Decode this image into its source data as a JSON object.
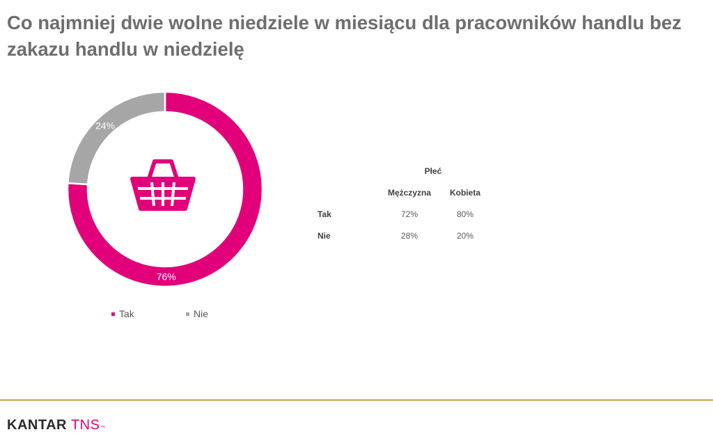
{
  "title": "Co najmniej dwie wolne niedziele w miesiącu dla pracowników handlu bez zakazu handlu w niedzielę",
  "chart_data": {
    "type": "pie",
    "variant": "donut",
    "categories": [
      "Tak",
      "Nie"
    ],
    "values": [
      76,
      24
    ],
    "labels": [
      "76%",
      "24%"
    ],
    "colors": [
      "#e2007a",
      "#a6a6a6"
    ],
    "center_icon": "shopping-basket-icon",
    "legend_position": "bottom"
  },
  "legend": [
    {
      "label": "Tak",
      "color": "#e2007a"
    },
    {
      "label": "Nie",
      "color": "#a6a6a6"
    }
  ],
  "crosstab": {
    "group_header": "Płeć",
    "columns": [
      "Mężczyzna",
      "Kobieta"
    ],
    "rows": [
      {
        "label": "Tak",
        "values": [
          "72%",
          "80%"
        ]
      },
      {
        "label": "Nie",
        "values": [
          "28%",
          "20%"
        ]
      }
    ]
  },
  "footer": {
    "logo_part1": "KANTAR",
    "logo_part2": "TNS",
    "logo_mark": "¬",
    "rule_color": "#c8a24a"
  }
}
